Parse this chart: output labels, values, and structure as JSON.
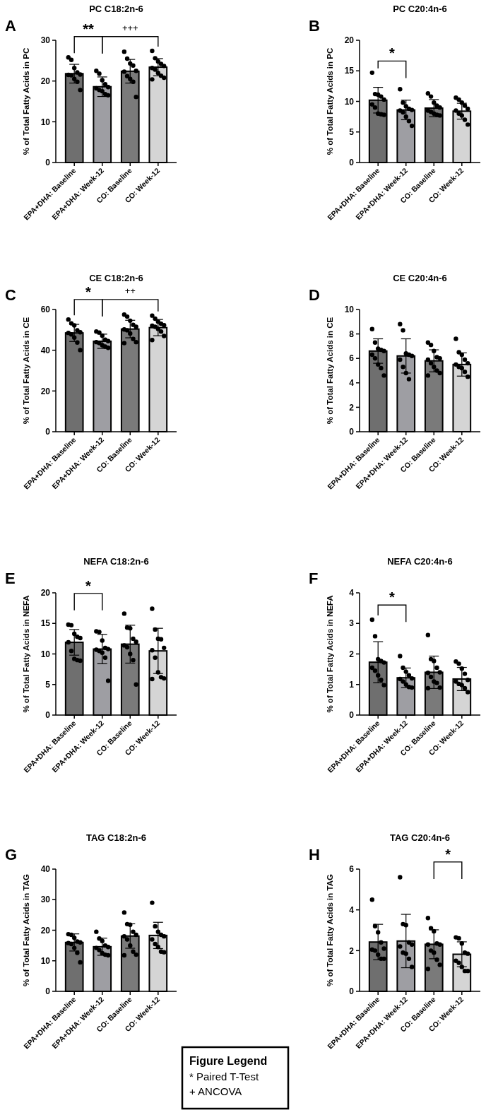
{
  "chart_data": [
    {
      "type": "bar",
      "title": "PC C18:2n-6",
      "ylabel": "% of Total Fatty Acids in PC",
      "categories": [
        "EPA+DHA: Baseline",
        "EPA+DHA: Week-12",
        "CO: Baseline",
        "CO: Week-12"
      ],
      "ylim": [
        0,
        30
      ],
      "yticks": [
        0,
        10,
        20,
        30
      ],
      "annotations": [
        "A",
        "**",
        "+++"
      ],
      "series": [
        {
          "type": "bar",
          "values": [
            21.8,
            18.6,
            22.4,
            23.4
          ],
          "colors": [
            "#6f6f6f",
            "#9e9ea3",
            "#7a7a7a",
            "#d5d5d5"
          ],
          "errors": [
            2.3,
            2.4,
            2.9,
            2.1
          ]
        },
        {
          "type": "scatter",
          "marker": "circle",
          "color": "#000000",
          "x": [
            "EPA+DHA: Baseline",
            "EPA+DHA: Baseline",
            "EPA+DHA: Baseline",
            "EPA+DHA: Baseline",
            "EPA+DHA: Baseline",
            "EPA+DHA: Baseline",
            "EPA+DHA: Baseline",
            "EPA+DHA: Baseline",
            "EPA+DHA: Baseline",
            "EPA+DHA: Baseline",
            "EPA+DHA: Week-12",
            "EPA+DHA: Week-12",
            "EPA+DHA: Week-12",
            "EPA+DHA: Week-12",
            "EPA+DHA: Week-12",
            "EPA+DHA: Week-12",
            "EPA+DHA: Week-12",
            "EPA+DHA: Week-12",
            "EPA+DHA: Week-12",
            "EPA+DHA: Week-12",
            "CO: Baseline",
            "CO: Baseline",
            "CO: Baseline",
            "CO: Baseline",
            "CO: Baseline",
            "CO: Baseline",
            "CO: Baseline",
            "CO: Baseline",
            "CO: Baseline",
            "CO: Baseline",
            "CO: Week-12",
            "CO: Week-12",
            "CO: Week-12",
            "CO: Week-12",
            "CO: Week-12",
            "CO: Week-12",
            "CO: Week-12",
            "CO: Week-12",
            "CO: Week-12",
            "CO: Week-12",
            "CO: Week-12"
          ],
          "values": [
            25.8,
            25.2,
            23.2,
            22.1,
            21.6,
            21.5,
            21.4,
            20.5,
            19.8,
            17.8,
            22.5,
            21.8,
            20.2,
            19.2,
            18.5,
            18.2,
            17.8,
            17.5,
            16.8,
            16.5,
            27.2,
            25.5,
            24.3,
            23.8,
            22.5,
            22.3,
            21.2,
            20.5,
            19.8,
            16.1,
            27.4,
            25.6,
            24.8,
            24.2,
            23.7,
            23.2,
            22.8,
            22.0,
            21.3,
            20.8,
            20.4
          ]
        }
      ]
    },
    {
      "type": "bar",
      "title": "PC C20:4n-6",
      "ylabel": "% of Total Fatty Acids in PC",
      "categories": [
        "EPA+DHA: Baseline",
        "EPA+DHA: Week-12",
        "CO: Baseline",
        "CO: Week-12"
      ],
      "ylim": [
        0,
        20
      ],
      "yticks": [
        0,
        5,
        10,
        15,
        20
      ],
      "annotations": [
        "B",
        "*"
      ],
      "series": [
        {
          "type": "bar",
          "values": [
            10.2,
            8.6,
            8.9,
            8.4
          ],
          "colors": [
            "#6f6f6f",
            "#9e9ea3",
            "#7a7a7a",
            "#d5d5d5"
          ],
          "errors": [
            2.1,
            1.6,
            1.4,
            1.3
          ]
        },
        {
          "type": "scatter",
          "marker": "circle",
          "color": "#000000",
          "x": [
            "EPA+DHA: Baseline",
            "EPA+DHA: Baseline",
            "EPA+DHA: Baseline",
            "EPA+DHA: Baseline",
            "EPA+DHA: Baseline",
            "EPA+DHA: Baseline",
            "EPA+DHA: Baseline",
            "EPA+DHA: Baseline",
            "EPA+DHA: Baseline",
            "EPA+DHA: Baseline",
            "EPA+DHA: Week-12",
            "EPA+DHA: Week-12",
            "EPA+DHA: Week-12",
            "EPA+DHA: Week-12",
            "EPA+DHA: Week-12",
            "EPA+DHA: Week-12",
            "EPA+DHA: Week-12",
            "EPA+DHA: Week-12",
            "EPA+DHA: Week-12",
            "EPA+DHA: Week-12",
            "CO: Baseline",
            "CO: Baseline",
            "CO: Baseline",
            "CO: Baseline",
            "CO: Baseline",
            "CO: Baseline",
            "CO: Baseline",
            "CO: Baseline",
            "CO: Baseline",
            "CO: Baseline",
            "CO: Week-12",
            "CO: Week-12",
            "CO: Week-12",
            "CO: Week-12",
            "CO: Week-12",
            "CO: Week-12",
            "CO: Week-12",
            "CO: Week-12",
            "CO: Week-12",
            "CO: Week-12"
          ],
          "values": [
            14.7,
            11.2,
            11.1,
            10.8,
            10.3,
            9.5,
            9.0,
            8.0,
            7.9,
            7.8,
            12.0,
            9.8,
            9.2,
            8.8,
            8.6,
            8.5,
            8.2,
            7.5,
            6.8,
            6.0,
            11.3,
            10.8,
            9.8,
            9.3,
            9.0,
            8.5,
            8.3,
            8.0,
            7.8,
            7.7,
            10.6,
            10.3,
            9.8,
            9.3,
            8.8,
            8.5,
            8.0,
            7.7,
            7.0,
            6.2
          ]
        }
      ]
    },
    {
      "type": "bar",
      "title": "CE C18:2n-6",
      "ylabel": "% of Total Fatty Acids in CE",
      "categories": [
        "EPA+DHA: Baseline",
        "EPA+DHA: Week-12",
        "CO: Baseline",
        "CO: Week-12"
      ],
      "ylim": [
        0,
        60
      ],
      "yticks": [
        0,
        20,
        40,
        60
      ],
      "annotations": [
        "C",
        "*",
        "++"
      ],
      "series": [
        {
          "type": "bar",
          "values": [
            48.5,
            44.4,
            50.4,
            51.1
          ],
          "colors": [
            "#6f6f6f",
            "#9e9ea3",
            "#7a7a7a",
            "#d5d5d5"
          ],
          "errors": [
            4.2,
            3.5,
            4.3,
            4.0
          ]
        },
        {
          "type": "scatter",
          "marker": "circle",
          "color": "#000000",
          "x": [
            "EPA+DHA: Baseline",
            "EPA+DHA: Baseline",
            "EPA+DHA: Baseline",
            "EPA+DHA: Baseline",
            "EPA+DHA: Baseline",
            "EPA+DHA: Baseline",
            "EPA+DHA: Baseline",
            "EPA+DHA: Baseline",
            "EPA+DHA: Baseline",
            "EPA+DHA: Baseline",
            "EPA+DHA: Week-12",
            "EPA+DHA: Week-12",
            "EPA+DHA: Week-12",
            "EPA+DHA: Week-12",
            "EPA+DHA: Week-12",
            "EPA+DHA: Week-12",
            "EPA+DHA: Week-12",
            "EPA+DHA: Week-12",
            "EPA+DHA: Week-12",
            "EPA+DHA: Week-12",
            "CO: Baseline",
            "CO: Baseline",
            "CO: Baseline",
            "CO: Baseline",
            "CO: Baseline",
            "CO: Baseline",
            "CO: Baseline",
            "CO: Baseline",
            "CO: Baseline",
            "CO: Baseline",
            "CO: Baseline",
            "CO: Week-12",
            "CO: Week-12",
            "CO: Week-12",
            "CO: Week-12",
            "CO: Week-12",
            "CO: Week-12",
            "CO: Week-12",
            "CO: Week-12",
            "CO: Week-12",
            "CO: Week-12",
            "CO: Week-12"
          ],
          "values": [
            55.1,
            53.2,
            52.2,
            49.8,
            48.8,
            48.5,
            47.8,
            46.2,
            43.8,
            40.1,
            49.2,
            48.7,
            47.2,
            45.2,
            44.5,
            44.0,
            43.5,
            42.5,
            41.8,
            41.2,
            57.5,
            56.5,
            54.5,
            52.5,
            51.5,
            50.2,
            49.8,
            48.2,
            45.5,
            44.0,
            43.5,
            57.0,
            55.5,
            54.0,
            53.0,
            52.3,
            52.0,
            51.5,
            50.5,
            49.2,
            47.0,
            45.0
          ]
        }
      ]
    },
    {
      "type": "bar",
      "title": "CE C20:4n-6",
      "ylabel": "% of Total Fatty Acids in CE",
      "categories": [
        "EPA+DHA: Baseline",
        "EPA+DHA: Week-12",
        "CO: Baseline",
        "CO: Week-12"
      ],
      "ylim": [
        0,
        10
      ],
      "yticks": [
        0,
        2,
        4,
        6,
        8,
        10
      ],
      "annotations": [
        "D"
      ],
      "series": [
        {
          "type": "bar",
          "values": [
            6.6,
            6.2,
            5.8,
            5.5
          ],
          "colors": [
            "#6f6f6f",
            "#9e9ea3",
            "#7a7a7a",
            "#d5d5d5"
          ],
          "errors": [
            1.0,
            1.4,
            0.9,
            0.95
          ]
        },
        {
          "type": "scatter",
          "marker": "circle",
          "color": "#000000",
          "x": [
            "EPA+DHA: Baseline",
            "EPA+DHA: Baseline",
            "EPA+DHA: Baseline",
            "EPA+DHA: Baseline",
            "EPA+DHA: Baseline",
            "EPA+DHA: Baseline",
            "EPA+DHA: Baseline",
            "EPA+DHA: Baseline",
            "EPA+DHA: Baseline",
            "EPA+DHA: Baseline",
            "EPA+DHA: Week-12",
            "EPA+DHA: Week-12",
            "EPA+DHA: Week-12",
            "EPA+DHA: Week-12",
            "EPA+DHA: Week-12",
            "EPA+DHA: Week-12",
            "EPA+DHA: Week-12",
            "EPA+DHA: Week-12",
            "EPA+DHA: Week-12",
            "CO: Baseline",
            "CO: Baseline",
            "CO: Baseline",
            "CO: Baseline",
            "CO: Baseline",
            "CO: Baseline",
            "CO: Baseline",
            "CO: Baseline",
            "CO: Baseline",
            "CO: Baseline",
            "CO: Baseline",
            "CO: Week-12",
            "CO: Week-12",
            "CO: Week-12",
            "CO: Week-12",
            "CO: Week-12",
            "CO: Week-12",
            "CO: Week-12",
            "CO: Week-12",
            "CO: Week-12",
            "CO: Week-12"
          ],
          "values": [
            8.4,
            7.3,
            6.8,
            6.7,
            6.6,
            6.3,
            6.0,
            5.5,
            5.2,
            4.6,
            8.8,
            8.3,
            6.4,
            6.3,
            6.2,
            5.9,
            5.3,
            4.8,
            4.3,
            7.3,
            7.1,
            6.6,
            6.1,
            6.0,
            5.9,
            5.6,
            5.3,
            5.0,
            4.8,
            4.6,
            7.6,
            6.5,
            6.3,
            5.9,
            5.6,
            5.5,
            5.3,
            5.2,
            4.9,
            4.5
          ]
        }
      ]
    },
    {
      "type": "bar",
      "title": "NEFA C18:2n-6",
      "ylabel": "% of Total Fatty Acids in NEFA",
      "categories": [
        "EPA+DHA: Baseline",
        "EPA+DHA: Week-12",
        "CO: Baseline",
        "CO: Week-12"
      ],
      "ylim": [
        0,
        20
      ],
      "yticks": [
        0,
        5,
        10,
        15,
        20
      ],
      "annotations": [
        "E",
        "*"
      ],
      "series": [
        {
          "type": "bar",
          "values": [
            11.9,
            10.8,
            11.6,
            10.5
          ],
          "colors": [
            "#6f6f6f",
            "#9e9ea3",
            "#7a7a7a",
            "#d5d5d5"
          ],
          "errors": [
            2.1,
            2.4,
            3.1,
            3.7
          ]
        },
        {
          "type": "scatter",
          "marker": "circle",
          "color": "#000000",
          "x": [
            "EPA+DHA: Baseline",
            "EPA+DHA: Baseline",
            "EPA+DHA: Baseline",
            "EPA+DHA: Baseline",
            "EPA+DHA: Baseline",
            "EPA+DHA: Baseline",
            "EPA+DHA: Baseline",
            "EPA+DHA: Baseline",
            "EPA+DHA: Baseline",
            "EPA+DHA: Baseline",
            "EPA+DHA: Week-12",
            "EPA+DHA: Week-12",
            "EPA+DHA: Week-12",
            "EPA+DHA: Week-12",
            "EPA+DHA: Week-12",
            "EPA+DHA: Week-12",
            "EPA+DHA: Week-12",
            "EPA+DHA: Week-12",
            "EPA+DHA: Week-12",
            "EPA+DHA: Week-12",
            "CO: Baseline",
            "CO: Baseline",
            "CO: Baseline",
            "CO: Baseline",
            "CO: Baseline",
            "CO: Baseline",
            "CO: Baseline",
            "CO: Baseline",
            "CO: Baseline",
            "CO: Baseline",
            "CO: Week-12",
            "CO: Week-12",
            "CO: Week-12",
            "CO: Week-12",
            "CO: Week-12",
            "CO: Week-12",
            "CO: Week-12",
            "CO: Week-12",
            "CO: Week-12",
            "CO: Week-12",
            "CO: Week-12"
          ],
          "values": [
            14.8,
            14.7,
            13.3,
            12.8,
            12.6,
            11.9,
            10.5,
            9.2,
            9.0,
            8.9,
            13.7,
            13.6,
            12.2,
            11.0,
            10.8,
            10.7,
            10.5,
            10.2,
            9.4,
            5.6,
            16.6,
            14.3,
            14.2,
            12.5,
            12.0,
            11.4,
            11.1,
            10.0,
            9.0,
            5.0,
            17.4,
            14.0,
            12.5,
            12.4,
            11.0,
            10.6,
            9.4,
            7.0,
            6.2,
            6.0,
            5.9
          ]
        }
      ]
    },
    {
      "type": "bar",
      "title": "NEFA C20:4n-6",
      "ylabel": "% of Total Fatty Acids in NEFA",
      "categories": [
        "EPA+DHA: Baseline",
        "EPA+DHA: Week-12",
        "CO: Baseline",
        "CO: Week-12"
      ],
      "ylim": [
        0,
        4
      ],
      "yticks": [
        0,
        1,
        2,
        3,
        4
      ],
      "annotations": [
        "F",
        "*"
      ],
      "series": [
        {
          "type": "bar",
          "values": [
            1.73,
            1.22,
            1.4,
            1.18
          ],
          "colors": [
            "#6f6f6f",
            "#9e9ea3",
            "#7a7a7a",
            "#d5d5d5"
          ],
          "errors": [
            0.67,
            0.32,
            0.53,
            0.38
          ]
        },
        {
          "type": "scatter",
          "marker": "circle",
          "color": "#000000",
          "x": [
            "EPA+DHA: Baseline",
            "EPA+DHA: Baseline",
            "EPA+DHA: Baseline",
            "EPA+DHA: Baseline",
            "EPA+DHA: Baseline",
            "EPA+DHA: Baseline",
            "EPA+DHA: Baseline",
            "EPA+DHA: Baseline",
            "EPA+DHA: Baseline",
            "EPA+DHA: Baseline",
            "EPA+DHA: Week-12",
            "EPA+DHA: Week-12",
            "EPA+DHA: Week-12",
            "EPA+DHA: Week-12",
            "EPA+DHA: Week-12",
            "EPA+DHA: Week-12",
            "EPA+DHA: Week-12",
            "EPA+DHA: Week-12",
            "EPA+DHA: Week-12",
            "EPA+DHA: Week-12",
            "CO: Baseline",
            "CO: Baseline",
            "CO: Baseline",
            "CO: Baseline",
            "CO: Baseline",
            "CO: Baseline",
            "CO: Baseline",
            "CO: Baseline",
            "CO: Baseline",
            "CO: Baseline",
            "CO: Baseline",
            "CO: Week-12",
            "CO: Week-12",
            "CO: Week-12",
            "CO: Week-12",
            "CO: Week-12",
            "CO: Week-12",
            "CO: Week-12",
            "CO: Week-12",
            "CO: Week-12",
            "CO: Week-12"
          ],
          "values": [
            3.12,
            2.58,
            1.83,
            1.77,
            1.72,
            1.55,
            1.45,
            1.3,
            1.15,
            0.98,
            1.93,
            1.55,
            1.42,
            1.3,
            1.2,
            1.18,
            1.1,
            1.0,
            0.92,
            0.9,
            2.62,
            1.83,
            1.77,
            1.55,
            1.4,
            1.38,
            1.25,
            1.1,
            1.05,
            0.9,
            0.88,
            1.75,
            1.68,
            1.52,
            1.35,
            1.15,
            1.1,
            1.02,
            0.98,
            0.88,
            0.75
          ]
        }
      ]
    },
    {
      "type": "bar",
      "title": "TAG C18:2n-6",
      "ylabel": "% of Total Fatty Acids in TAG",
      "categories": [
        "EPA+DHA: Baseline",
        "EPA+DHA: Week-12",
        "CO: Baseline",
        "CO: Week-12"
      ],
      "ylim": [
        0,
        40
      ],
      "yticks": [
        0,
        10,
        20,
        30,
        40
      ],
      "annotations": [
        "G"
      ],
      "series": [
        {
          "type": "bar",
          "values": [
            16.0,
            14.6,
            18.1,
            18.3
          ],
          "colors": [
            "#6f6f6f",
            "#9e9ea3",
            "#7a7a7a",
            "#d5d5d5"
          ],
          "errors": [
            2.8,
            2.8,
            4.0,
            4.3
          ]
        },
        {
          "type": "scatter",
          "marker": "circle",
          "color": "#000000",
          "x": [
            "EPA+DHA: Baseline",
            "EPA+DHA: Baseline",
            "EPA+DHA: Baseline",
            "EPA+DHA: Baseline",
            "EPA+DHA: Baseline",
            "EPA+DHA: Baseline",
            "EPA+DHA: Baseline",
            "EPA+DHA: Baseline",
            "EPA+DHA: Baseline",
            "EPA+DHA: Baseline",
            "EPA+DHA: Week-12",
            "EPA+DHA: Week-12",
            "EPA+DHA: Week-12",
            "EPA+DHA: Week-12",
            "EPA+DHA: Week-12",
            "EPA+DHA: Week-12",
            "EPA+DHA: Week-12",
            "EPA+DHA: Week-12",
            "EPA+DHA: Week-12",
            "EPA+DHA: Week-12",
            "CO: Baseline",
            "CO: Baseline",
            "CO: Baseline",
            "CO: Baseline",
            "CO: Baseline",
            "CO: Baseline",
            "CO: Baseline",
            "CO: Baseline",
            "CO: Baseline",
            "CO: Baseline",
            "CO: Baseline",
            "CO: Week-12",
            "CO: Week-12",
            "CO: Week-12",
            "CO: Week-12",
            "CO: Week-12",
            "CO: Week-12",
            "CO: Week-12",
            "CO: Week-12",
            "CO: Week-12",
            "CO: Week-12"
          ],
          "values": [
            18.7,
            18.5,
            17.5,
            16.3,
            16.0,
            15.8,
            15.5,
            14.2,
            12.6,
            9.5,
            19.5,
            17.3,
            16.5,
            15.0,
            14.5,
            14.2,
            13.5,
            12.5,
            12.0,
            11.8,
            25.8,
            22.0,
            21.8,
            19.5,
            18.5,
            18.0,
            17.0,
            15.0,
            13.0,
            12.0,
            11.8,
            29.0,
            21.3,
            19.5,
            18.5,
            18.0,
            17.0,
            15.5,
            14.5,
            13.0,
            12.8
          ]
        }
      ]
    },
    {
      "type": "bar",
      "title": "TAG C20:4n-6",
      "ylabel": "% of Total Fatty Acids in TAG",
      "categories": [
        "EPA+DHA: Baseline",
        "EPA+DHA: Week-12",
        "CO: Baseline",
        "CO: Week-12"
      ],
      "ylim": [
        0,
        6
      ],
      "yticks": [
        0,
        2,
        4,
        6
      ],
      "annotations": [
        "H",
        "*"
      ],
      "series": [
        {
          "type": "bar",
          "values": [
            2.42,
            2.47,
            2.31,
            1.82
          ],
          "colors": [
            "#6f6f6f",
            "#9e9ea3",
            "#7a7a7a",
            "#d5d5d5"
          ],
          "errors": [
            0.87,
            1.31,
            0.71,
            0.61
          ]
        },
        {
          "type": "scatter",
          "marker": "circle",
          "color": "#000000",
          "x": [
            "EPA+DHA: Baseline",
            "EPA+DHA: Baseline",
            "EPA+DHA: Baseline",
            "EPA+DHA: Baseline",
            "EPA+DHA: Baseline",
            "EPA+DHA: Baseline",
            "EPA+DHA: Baseline",
            "EPA+DHA: Baseline",
            "EPA+DHA: Baseline",
            "EPA+DHA: Baseline",
            "EPA+DHA: Week-12",
            "EPA+DHA: Week-12",
            "EPA+DHA: Week-12",
            "EPA+DHA: Week-12",
            "EPA+DHA: Week-12",
            "EPA+DHA: Week-12",
            "EPA+DHA: Week-12",
            "EPA+DHA: Week-12",
            "EPA+DHA: Week-12",
            "EPA+DHA: Week-12",
            "CO: Baseline",
            "CO: Baseline",
            "CO: Baseline",
            "CO: Baseline",
            "CO: Baseline",
            "CO: Baseline",
            "CO: Baseline",
            "CO: Baseline",
            "CO: Baseline",
            "CO: Baseline",
            "CO: Baseline",
            "CO: Week-12",
            "CO: Week-12",
            "CO: Week-12",
            "CO: Week-12",
            "CO: Week-12",
            "CO: Week-12",
            "CO: Week-12",
            "CO: Week-12",
            "CO: Week-12",
            "CO: Week-12"
          ],
          "values": [
            4.5,
            3.2,
            2.9,
            2.4,
            2.1,
            2.05,
            2.0,
            1.8,
            1.6,
            1.6,
            5.6,
            3.3,
            3.25,
            2.4,
            2.3,
            2.2,
            1.9,
            1.85,
            1.6,
            1.2,
            3.6,
            3.1,
            2.95,
            2.35,
            2.3,
            2.3,
            2.0,
            1.9,
            1.55,
            1.3,
            1.1,
            2.65,
            2.6,
            2.35,
            1.9,
            1.85,
            1.5,
            1.4,
            1.2,
            1.0,
            1.0
          ]
        }
      ]
    },
    {
      "type": "other",
      "title": "Figure Legend",
      "annotations": [
        "* Paired T-Test",
        "+ ANCOVA"
      ]
    }
  ]
}
